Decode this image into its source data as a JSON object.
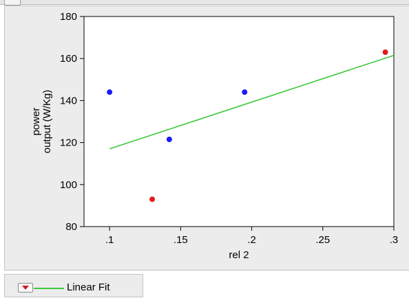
{
  "chart_data": {
    "type": "scatter",
    "title": "",
    "xlabel": "rel 2",
    "ylabel": [
      "power",
      "output (W/Kg)"
    ],
    "xlim": [
      0.082,
      0.3
    ],
    "ylim": [
      80,
      180
    ],
    "x_ticks": [
      {
        "value": 0.1,
        "label": ".1"
      },
      {
        "value": 0.15,
        "label": ".15"
      },
      {
        "value": 0.2,
        "label": ".2"
      },
      {
        "value": 0.25,
        "label": ".25"
      },
      {
        "value": 0.3,
        "label": ".3"
      }
    ],
    "y_ticks": [
      {
        "value": 80,
        "label": "80"
      },
      {
        "value": 100,
        "label": "100"
      },
      {
        "value": 120,
        "label": "120"
      },
      {
        "value": 140,
        "label": "140"
      },
      {
        "value": 160,
        "label": "160"
      },
      {
        "value": 180,
        "label": "180"
      }
    ],
    "grid": false,
    "points": [
      {
        "x": 0.1,
        "y": 144,
        "color": "#1a1aff"
      },
      {
        "x": 0.142,
        "y": 121.5,
        "color": "#1a1aff"
      },
      {
        "x": 0.195,
        "y": 144,
        "color": "#1a1aff"
      },
      {
        "x": 0.13,
        "y": 93,
        "color": "#e81919"
      },
      {
        "x": 0.294,
        "y": 163,
        "color": "#e81919"
      }
    ],
    "fit_line": {
      "name": "Linear Fit",
      "color": "#3cc83c",
      "x": [
        0.1,
        0.3
      ],
      "y": [
        117,
        161.5
      ]
    },
    "legend": {
      "placement": "bottom-left",
      "entries": [
        "Linear Fit"
      ]
    }
  }
}
